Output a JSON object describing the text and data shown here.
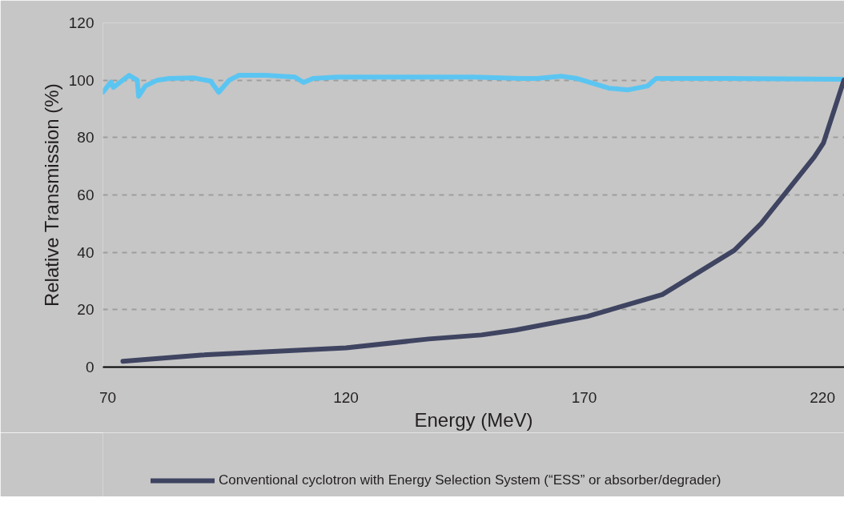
{
  "chart_data": {
    "type": "line",
    "xlabel": "Energy (MeV)",
    "ylabel": "Relative Transmission (%)",
    "xlim": [
      69,
      224.6
    ],
    "ylim": [
      0,
      120
    ],
    "xticks": [
      70,
      120,
      170,
      220
    ],
    "yticks": [
      0,
      20,
      40,
      60,
      80,
      100,
      120
    ],
    "grid": "y",
    "line_style": "solid",
    "marker": "none",
    "legend": "bottom",
    "series": [
      {
        "color": "#5bc5f2",
        "x": [
          69.0,
          70.7,
          71.2,
          74.5,
          76.2,
          76.5,
          77.9,
          80.4,
          82.9,
          88.0,
          91.6,
          93.3,
          95.5,
          97.5,
          103.1,
          109.3,
          111.1,
          113.1,
          118.2,
          146.7,
          156.7,
          160.1,
          165.1,
          168.5,
          175.2,
          179.1,
          183.3,
          185.1,
          200.0,
          224.6
        ],
        "values": [
          95.8,
          99.4,
          97.5,
          101.7,
          100,
          94.4,
          98,
          100,
          100.6,
          100.8,
          99.7,
          95.8,
          100,
          101.7,
          101.7,
          101.1,
          99.2,
          100.6,
          101.1,
          101.1,
          100.6,
          100.6,
          101.4,
          100.6,
          97.2,
          96.6,
          98,
          100.6,
          100.6,
          100.3
        ]
      },
      {
        "name": "Conventional cyclotron with Energy Selection System (“ESS” or absorber/degrader)",
        "color": "#3f4461",
        "x": [
          73.2,
          89.6,
          120,
          137.4,
          148.4,
          155.6,
          170.7,
          186.4,
          201.5,
          207.1,
          212.1,
          218.3,
          220.2,
          224.5
        ],
        "values": [
          2,
          4.2,
          6.7,
          9.8,
          11.2,
          12.9,
          17.7,
          25.3,
          40.7,
          50,
          60.4,
          73.3,
          78.1,
          100
        ]
      }
    ]
  }
}
